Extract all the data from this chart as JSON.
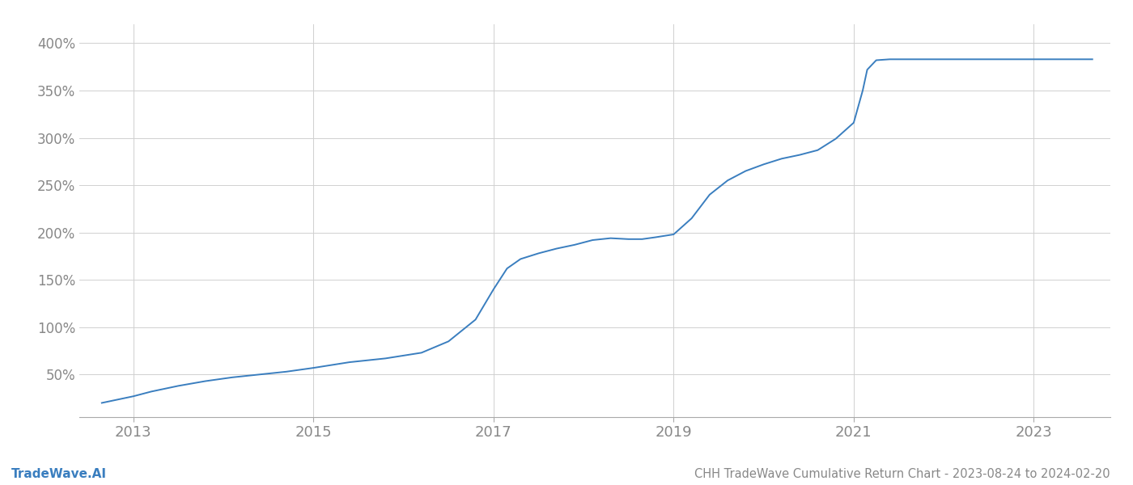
{
  "title": "CHH TradeWave Cumulative Return Chart - 2023-08-24 to 2024-02-20",
  "watermark": "TradeWave.AI",
  "line_color": "#3a7ebf",
  "background_color": "#ffffff",
  "grid_color": "#d0d0d0",
  "x_years": [
    2013,
    2015,
    2017,
    2019,
    2021,
    2023
  ],
  "y_ticks": [
    50,
    100,
    150,
    200,
    250,
    300,
    350,
    400
  ],
  "xlim": [
    2012.4,
    2023.85
  ],
  "ylim": [
    5,
    420
  ],
  "data_x": [
    2012.65,
    2013.0,
    2013.2,
    2013.5,
    2013.8,
    2014.1,
    2014.4,
    2014.7,
    2015.0,
    2015.2,
    2015.4,
    2015.6,
    2015.8,
    2016.0,
    2016.2,
    2016.5,
    2016.8,
    2017.0,
    2017.15,
    2017.3,
    2017.5,
    2017.7,
    2017.9,
    2018.1,
    2018.3,
    2018.5,
    2018.65,
    2018.8,
    2019.0,
    2019.2,
    2019.4,
    2019.6,
    2019.8,
    2020.0,
    2020.2,
    2020.4,
    2020.6,
    2020.8,
    2021.0,
    2021.1,
    2021.15,
    2021.25,
    2021.4,
    2021.6,
    2021.8,
    2022.0,
    2022.2,
    2022.4,
    2022.6,
    2022.8,
    2023.0,
    2023.2,
    2023.4,
    2023.65
  ],
  "data_y": [
    20,
    27,
    32,
    38,
    43,
    47,
    50,
    53,
    57,
    60,
    63,
    65,
    67,
    70,
    73,
    85,
    108,
    140,
    162,
    172,
    178,
    183,
    187,
    192,
    194,
    193,
    193,
    195,
    198,
    215,
    240,
    255,
    265,
    272,
    278,
    282,
    287,
    299,
    316,
    350,
    372,
    382,
    383,
    383,
    383,
    383,
    383,
    383,
    383,
    383,
    383,
    383,
    383,
    383
  ],
  "title_fontsize": 10.5,
  "watermark_fontsize": 11,
  "tick_label_color": "#888888",
  "line_width": 1.4,
  "figsize": [
    14.0,
    6.0
  ],
  "dpi": 100
}
